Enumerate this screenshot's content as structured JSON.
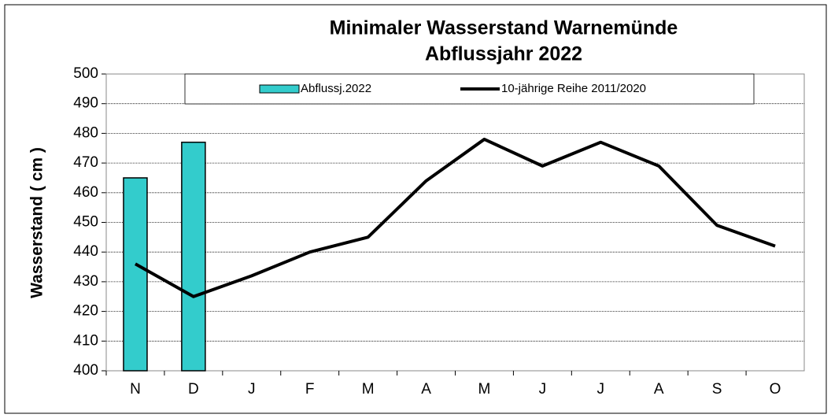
{
  "chart_data": {
    "type": "bar",
    "title": [
      "Minimaler Wasserstand Warnemünde",
      "Abflussjahr 2022"
    ],
    "y_label": "Wasserstand ( cm )",
    "categories": [
      "N",
      "D",
      "J",
      "F",
      "M",
      "A",
      "M",
      "J",
      "J",
      "A",
      "S",
      "O"
    ],
    "series": [
      {
        "name": "Abflussj.2022",
        "type": "bar",
        "color": "#33cccc",
        "values": [
          465,
          477,
          null,
          null,
          null,
          null,
          null,
          null,
          null,
          null,
          null,
          null
        ]
      },
      {
        "name": "10-jährige Reihe  2011/2020",
        "type": "line",
        "color": "#000000",
        "values": [
          436,
          425,
          432,
          440,
          445,
          464,
          478,
          469,
          477,
          469,
          449,
          442
        ]
      }
    ],
    "ylim": [
      400,
      500
    ],
    "yticks": [
      400,
      410,
      420,
      430,
      440,
      450,
      460,
      470,
      480,
      490,
      500
    ],
    "grid": true,
    "legend": "top"
  }
}
